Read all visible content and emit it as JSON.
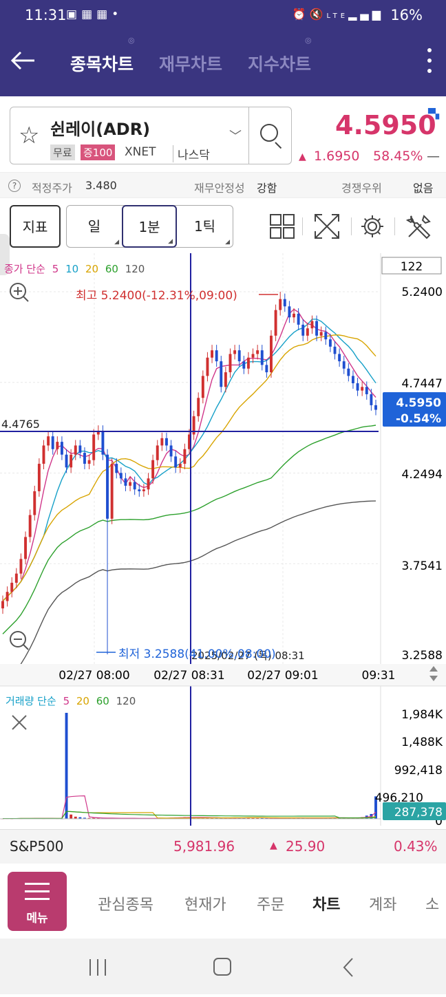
{
  "status_bar": {
    "time": "11:31",
    "icons": [
      "gallery-icon",
      "calendar-27-icon",
      "calendar-31-icon",
      "dot-icon"
    ],
    "right_icons": [
      "alarm-icon",
      "mute-icon",
      "lte-icon",
      "signal-icon"
    ],
    "battery": "16%"
  },
  "header": {
    "tabs": [
      {
        "label": "종목차트",
        "active": true
      },
      {
        "label": "재무차트",
        "active": false
      },
      {
        "label": "지수차트",
        "active": false
      }
    ]
  },
  "stock": {
    "name": "쉰레이(ADR)",
    "tag_free": "무료",
    "tag_margin": "증100",
    "exchange1": "XNET",
    "exchange2": "나스닥",
    "price": "4.5950",
    "change_arrow": "▲",
    "change": "1.6950",
    "change_pct": "58.45%",
    "change_dash": "—"
  },
  "info_row": {
    "help": "?",
    "fair_price_label": "적정주가",
    "fair_price": "3.480",
    "stability_label": "재무안정성",
    "stability": "강함",
    "competitive_label": "경쟁우위",
    "competitive": "없음"
  },
  "toolbar": {
    "indicator": "지표",
    "day": "일",
    "minute": "1분",
    "tick": "1틱"
  },
  "chart_data": {
    "type": "candlestick",
    "price_legend": {
      "prefix": "종가 단순",
      "periods": [
        "5",
        "10",
        "20",
        "60",
        "120"
      ],
      "colors": [
        "#d0368a",
        "#16a0c8",
        "#d8a400",
        "#2ca02c",
        "#555555"
      ]
    },
    "volume_legend": {
      "prefix": "거래량 단순",
      "periods": [
        "5",
        "20",
        "60",
        "120"
      ],
      "colors": [
        "#d0368a",
        "#d8a400",
        "#2ca02c",
        "#555555"
      ]
    },
    "count_box": "122",
    "y_ticks": [
      "5.2400",
      "4.7447",
      "4.2494",
      "3.7541",
      "3.2588"
    ],
    "current_price": "4.5950",
    "current_change": "-0.54%",
    "crosshair_price": "4.4765",
    "crosshair_time": "2025/02/27 (목) 08:31",
    "high_label": "최고 5.2400(-12.31%,09:00)",
    "low_label": "최저 3.2588(41.00%,08:00)",
    "x_ticks": [
      "02/27 08:00",
      "02/27 08:31",
      "02/27 09:01",
      "09:31"
    ],
    "vol_ticks": [
      "1,984K",
      "1,488K",
      "992,418",
      "496,210",
      "0"
    ],
    "current_volume": "287,378",
    "ylim": [
      3.2588,
      5.24
    ],
    "closes": [
      3.55,
      3.6,
      3.65,
      3.7,
      3.78,
      3.9,
      4.02,
      4.15,
      4.3,
      4.4,
      4.45,
      4.38,
      4.42,
      4.35,
      4.28,
      4.35,
      4.4,
      4.36,
      4.3,
      4.32,
      4.46,
      4.48,
      4.35,
      4.0,
      4.3,
      4.25,
      4.22,
      4.18,
      4.2,
      4.16,
      4.15,
      4.16,
      4.22,
      4.32,
      4.4,
      4.44,
      4.4,
      4.34,
      4.28,
      4.3,
      4.38,
      4.46,
      4.56,
      4.66,
      4.78,
      4.88,
      4.92,
      4.86,
      4.72,
      4.8,
      4.9,
      4.92,
      4.86,
      4.82,
      4.88,
      4.9,
      4.92,
      4.84,
      4.8,
      5.0,
      5.14,
      5.2,
      5.16,
      5.1,
      5.12,
      5.06,
      5.0,
      5.04,
      5.08,
      5.0,
      5.02,
      4.98,
      4.94,
      4.9,
      4.86,
      4.82,
      4.78,
      4.74,
      4.7,
      4.72,
      4.68,
      4.62,
      4.595
    ],
    "volumes": [
      5,
      6,
      5,
      7,
      6,
      8,
      9,
      8,
      7,
      6,
      7,
      8,
      6,
      5,
      1984,
      80,
      40,
      30,
      20,
      15,
      18,
      12,
      10,
      12,
      14,
      10,
      8,
      9,
      10,
      12,
      8,
      7,
      9,
      10,
      12,
      14,
      16,
      20,
      22,
      24,
      30,
      28,
      26,
      24,
      22,
      20,
      18,
      16,
      15,
      14,
      16,
      18,
      20,
      22,
      24,
      20,
      18,
      16,
      14,
      12,
      14,
      16,
      18,
      20,
      18,
      16,
      14,
      12,
      14,
      16,
      18,
      20,
      22,
      20,
      18,
      16,
      14,
      20,
      24,
      30,
      60,
      90,
      420
    ]
  },
  "market_bar": {
    "name": "S&P500",
    "value": "5,981.96",
    "arrow": "▲",
    "change": "25.90",
    "pct": "0.43%"
  },
  "bottom_nav": {
    "menu": "메뉴",
    "items": [
      {
        "label": "관심종목",
        "active": false
      },
      {
        "label": "현재가",
        "active": false
      },
      {
        "label": "주문",
        "active": false
      },
      {
        "label": "차트",
        "active": true
      },
      {
        "label": "계좌",
        "active": false
      },
      {
        "label": "소",
        "active": false
      }
    ]
  }
}
